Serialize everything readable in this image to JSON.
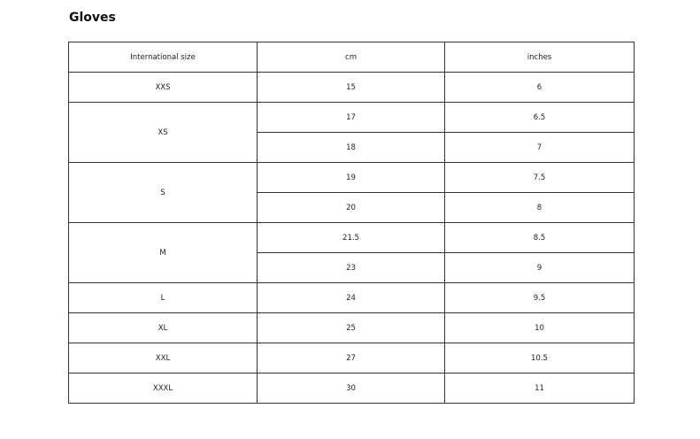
{
  "title": "Gloves",
  "headers": [
    "International size",
    "cm",
    "inches"
  ],
  "groups": [
    {
      "size": "XXS",
      "rows": [
        [
          "15",
          "6"
        ]
      ]
    },
    {
      "size": "XS",
      "rows": [
        [
          "17",
          "6.5"
        ],
        [
          "18",
          "7"
        ]
      ]
    },
    {
      "size": "S",
      "rows": [
        [
          "19",
          "7.5"
        ],
        [
          "20",
          "8"
        ]
      ]
    },
    {
      "size": "M",
      "rows": [
        [
          "21.5",
          "8.5"
        ],
        [
          "23",
          "9"
        ]
      ]
    },
    {
      "size": "L",
      "rows": [
        [
          "24",
          "9.5"
        ]
      ]
    },
    {
      "size": "XL",
      "rows": [
        [
          "25",
          "10"
        ]
      ]
    },
    {
      "size": "XXL",
      "rows": [
        [
          "27",
          "10.5"
        ]
      ]
    },
    {
      "size": "XXXL",
      "rows": [
        [
          "30",
          "11"
        ]
      ]
    }
  ]
}
